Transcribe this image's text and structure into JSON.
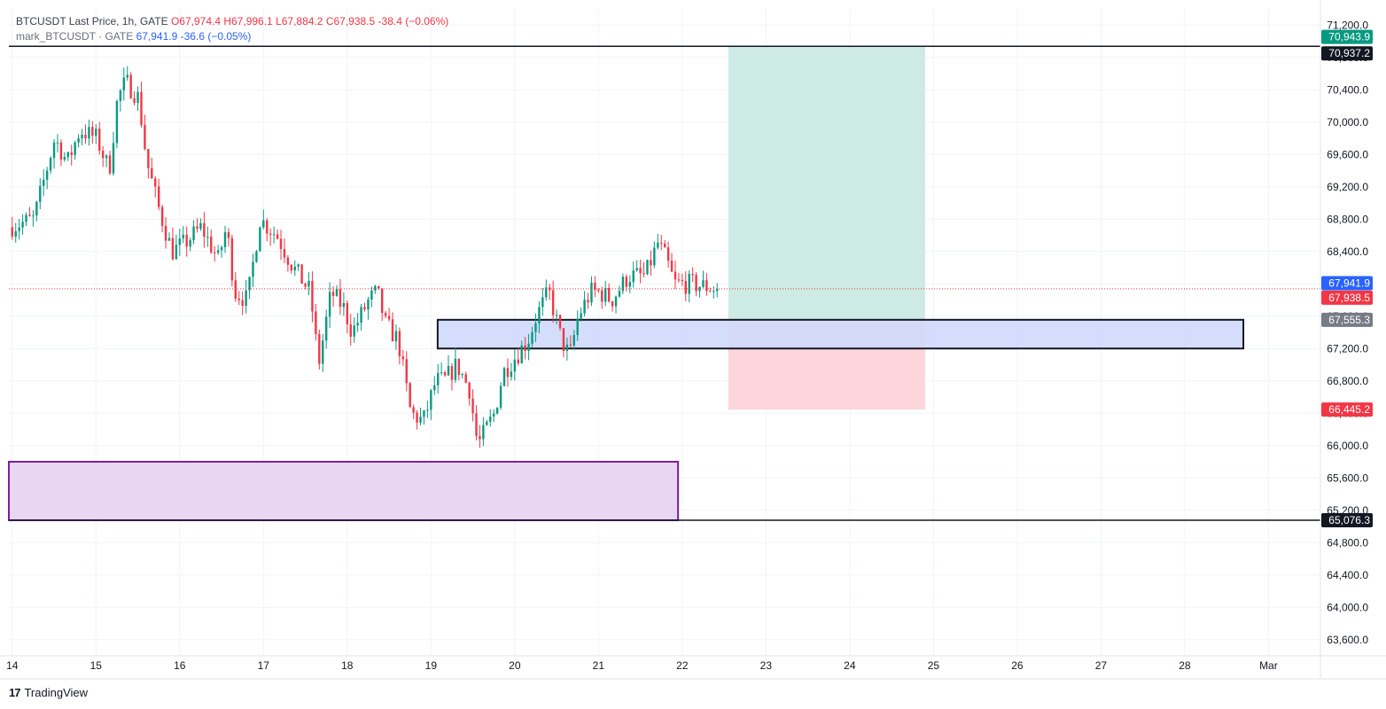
{
  "legend": {
    "line1": {
      "symbol": "BTCUSDT Last Price, 1h, GATE",
      "open": "O67,974.4",
      "high": "H67,996.1",
      "low": "L67,884.2",
      "close": "C67,938.5",
      "change": "-38.4 (−0.06%)"
    },
    "line2": {
      "symbol": "mark_BTCUSDT · GATE",
      "value": "67,941.9",
      "change": "-36.6 (−0.05%)"
    }
  },
  "footer": {
    "logo": "17",
    "brand": "TradingView"
  },
  "colors": {
    "up": "#089981",
    "down": "#f23645",
    "profit_zone": "#cdebe4",
    "loss_zone": "#fcd6da",
    "support_zone": "#cfd9fb",
    "demand_zone": "#e6d3f1",
    "demand_border": "#7b1fa2"
  },
  "chart_data": {
    "type": "candlestick",
    "title": "BTCUSDT Last Price, 1h, GATE",
    "ylim": [
      63400,
      71400
    ],
    "y_ticks": [
      63600,
      64000,
      64400,
      64800,
      65200,
      65600,
      66000,
      66400,
      66800,
      67200,
      67600,
      68000,
      68400,
      68800,
      69200,
      69600,
      70000,
      70400,
      70800,
      71200
    ],
    "y_tick_labels": [
      "63,600.0",
      "64,000.0",
      "64,400.0",
      "64,800.0",
      "65,200.0",
      "65,600.0",
      "66,000.0",
      "66,400.0",
      "66,800.0",
      "67,200.0",
      "67,600.0",
      "68,000.0",
      "68,400.0",
      "68,800.0",
      "69,200.0",
      "69,600.0",
      "70,000.0",
      "70,400.0",
      "70,800.0",
      "71,200.0"
    ],
    "x_range_days": [
      13.96,
      29.62
    ],
    "x_ticks": [
      {
        "day": 14,
        "label": "14"
      },
      {
        "day": 15,
        "label": "15"
      },
      {
        "day": 16,
        "label": "16"
      },
      {
        "day": 17,
        "label": "17"
      },
      {
        "day": 18,
        "label": "18"
      },
      {
        "day": 19,
        "label": "19"
      },
      {
        "day": 20,
        "label": "20"
      },
      {
        "day": 21,
        "label": "21"
      },
      {
        "day": 22,
        "label": "22"
      },
      {
        "day": 23,
        "label": "23"
      },
      {
        "day": 24,
        "label": "24"
      },
      {
        "day": 25,
        "label": "25"
      },
      {
        "day": 26,
        "label": "26"
      },
      {
        "day": 27,
        "label": "27"
      },
      {
        "day": 28,
        "label": "28"
      },
      {
        "day": 29,
        "label": "Mar"
      }
    ],
    "price_path": [
      [
        14.0,
        68700
      ],
      [
        14.3,
        68800
      ],
      [
        14.55,
        69800
      ],
      [
        14.7,
        69500
      ],
      [
        14.85,
        69900
      ],
      [
        15.05,
        69800
      ],
      [
        15.2,
        69400
      ],
      [
        15.3,
        70300
      ],
      [
        15.4,
        70500
      ],
      [
        15.55,
        70300
      ],
      [
        15.65,
        69500
      ],
      [
        15.8,
        68900
      ],
      [
        15.95,
        68400
      ],
      [
        16.1,
        68500
      ],
      [
        16.3,
        68700
      ],
      [
        16.5,
        68300
      ],
      [
        16.6,
        68700
      ],
      [
        16.7,
        67900
      ],
      [
        16.85,
        67800
      ],
      [
        17.0,
        68800
      ],
      [
        17.2,
        68600
      ],
      [
        17.4,
        68200
      ],
      [
        17.6,
        67900
      ],
      [
        17.7,
        67000
      ],
      [
        17.85,
        67900
      ],
      [
        18.0,
        67700
      ],
      [
        18.1,
        67400
      ],
      [
        18.3,
        67800
      ],
      [
        18.4,
        67900
      ],
      [
        18.5,
        67500
      ],
      [
        18.65,
        67300
      ],
      [
        18.8,
        66400
      ],
      [
        18.95,
        66300
      ],
      [
        19.1,
        66800
      ],
      [
        19.2,
        66800
      ],
      [
        19.35,
        67000
      ],
      [
        19.5,
        66700
      ],
      [
        19.6,
        66000
      ],
      [
        19.7,
        66200
      ],
      [
        19.8,
        66400
      ],
      [
        19.9,
        66900
      ],
      [
        20.05,
        67100
      ],
      [
        20.2,
        67300
      ],
      [
        20.3,
        67600
      ],
      [
        20.45,
        67900
      ],
      [
        20.6,
        67300
      ],
      [
        20.7,
        67100
      ],
      [
        20.8,
        67600
      ],
      [
        20.95,
        67900
      ],
      [
        21.05,
        67900
      ],
      [
        21.2,
        67800
      ],
      [
        21.4,
        68100
      ],
      [
        21.6,
        68100
      ],
      [
        21.75,
        68500
      ],
      [
        21.85,
        68300
      ],
      [
        21.95,
        68000
      ],
      [
        22.15,
        68000
      ],
      [
        22.45,
        67938.5
      ]
    ],
    "last_candle_day": 22.45,
    "price_lines": [
      {
        "name": "take-profit-line",
        "price": 70937.2,
        "label": "70,937.2",
        "color": "#131722"
      },
      {
        "name": "low-level-line",
        "price": 65076.3,
        "label": "65,076.3",
        "color": "#131722"
      }
    ],
    "current_price": {
      "price": 67938.5,
      "label": "67,938.5",
      "color": "#f23645"
    },
    "mark_price": {
      "price": 67941.9,
      "label": "67,941.9",
      "color": "#2962ff"
    },
    "price_badges": [
      {
        "name": "profit-target-badge",
        "price": 70943.9,
        "label": "70,943.9",
        "color": "#089981"
      },
      {
        "name": "take-profit-badge",
        "price": 70937.2,
        "label": "70,937.2",
        "color": "#131722"
      },
      {
        "name": "mark-price-badge",
        "price": 67941.9,
        "label": "67,941.9",
        "color": "#2962ff"
      },
      {
        "name": "last-price-badge",
        "price": 67938.5,
        "label": "67,938.5",
        "color": "#f23645"
      },
      {
        "name": "zone-price-badge",
        "price": 67555.3,
        "label": "67,555.3",
        "color": "#787b86"
      },
      {
        "name": "stop-loss-badge",
        "price": 66445.2,
        "label": "66,445.2",
        "color": "#f23645"
      },
      {
        "name": "low-level-badge",
        "price": 65076.3,
        "label": "65,076.3",
        "color": "#131722"
      }
    ],
    "long_position": {
      "day_start": 22.55,
      "day_end": 24.9,
      "entry": 67555.3,
      "target": 70943.9,
      "stop": 66445.2
    },
    "zones": [
      {
        "name": "support-zone",
        "day_start": 19.08,
        "day_end": 28.7,
        "top": 67555.3,
        "bottom": 67200,
        "fill": "#cfd9fb",
        "border": "#131722"
      },
      {
        "name": "demand-zone",
        "day_start": 13.96,
        "day_end": 21.95,
        "top": 65800,
        "bottom": 65076.3,
        "fill": "#e6d3f1",
        "border": "#7b1fa2"
      }
    ]
  }
}
